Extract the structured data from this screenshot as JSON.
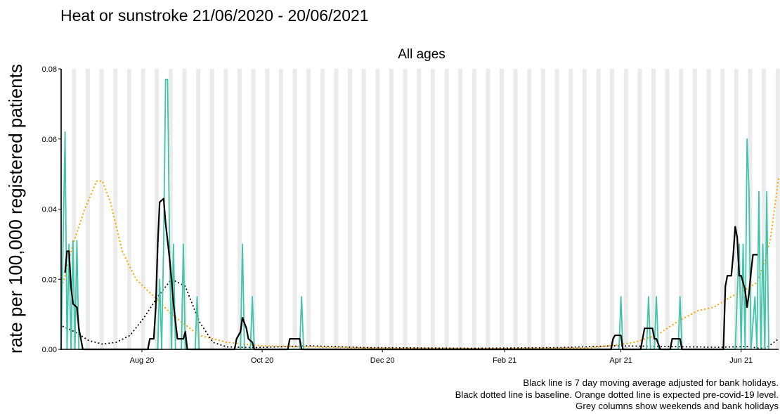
{
  "chart_data": {
    "type": "line",
    "title": "Heat or sunstroke 21/06/2020 - 20/06/2021",
    "panel_title": "All ages",
    "ylabel": "rate per 100,000 registered patients",
    "xlabel": "",
    "ylim": [
      0,
      0.08
    ],
    "xlim": [
      "2020-06-21",
      "2021-06-20"
    ],
    "yticks": [
      0,
      0.02,
      0.04,
      0.06,
      0.08
    ],
    "ytick_labels": [
      "0.00",
      "0.02",
      "0.04",
      "0.06",
      "0.08"
    ],
    "xticks": [
      {
        "date": "2020-08-01",
        "label": "Aug 20"
      },
      {
        "date": "2020-10-01",
        "label": "Oct 20"
      },
      {
        "date": "2020-12-01",
        "label": "Dec 20"
      },
      {
        "date": "2021-02-01",
        "label": "Feb 21"
      },
      {
        "date": "2021-04-01",
        "label": "Apr 21"
      },
      {
        "date": "2021-06-01",
        "label": "Jun 21"
      }
    ],
    "grey_columns": "weekends and bank holidays",
    "series": [
      {
        "kind": "daily",
        "color": "#40c4aa",
        "points": [
          [
            "2020-06-21",
            0
          ],
          [
            "2020-06-23",
            0.062
          ],
          [
            "2020-06-24",
            0
          ],
          [
            "2020-06-25",
            0.03
          ],
          [
            "2020-06-26",
            0
          ],
          [
            "2020-06-27",
            0.031
          ],
          [
            "2020-06-28",
            0
          ],
          [
            "2020-06-29",
            0.031
          ],
          [
            "2020-06-30",
            0
          ],
          [
            "2020-08-09",
            0
          ],
          [
            "2020-08-10",
            0.02
          ],
          [
            "2020-08-11",
            0
          ],
          [
            "2020-08-12",
            0.03
          ],
          [
            "2020-08-13",
            0.077
          ],
          [
            "2020-08-14",
            0.077
          ],
          [
            "2020-08-15",
            0.03
          ],
          [
            "2020-08-16",
            0
          ],
          [
            "2020-08-17",
            0.03
          ],
          [
            "2020-08-18",
            0
          ],
          [
            "2020-08-21",
            0
          ],
          [
            "2020-08-22",
            0.03
          ],
          [
            "2020-08-23",
            0
          ],
          [
            "2020-08-28",
            0
          ],
          [
            "2020-08-29",
            0.015
          ],
          [
            "2020-08-30",
            0
          ],
          [
            "2020-09-20",
            0
          ],
          [
            "2020-09-21",
            0.03
          ],
          [
            "2020-09-22",
            0
          ],
          [
            "2020-09-25",
            0
          ],
          [
            "2020-09-26",
            0.015
          ],
          [
            "2020-09-27",
            0
          ],
          [
            "2020-10-20",
            0
          ],
          [
            "2020-10-21",
            0.015
          ],
          [
            "2020-10-22",
            0
          ],
          [
            "2021-03-31",
            0
          ],
          [
            "2021-04-01",
            0.015
          ],
          [
            "2021-04-02",
            0
          ],
          [
            "2021-04-14",
            0
          ],
          [
            "2021-04-15",
            0.015
          ],
          [
            "2021-04-16",
            0
          ],
          [
            "2021-04-18",
            0
          ],
          [
            "2021-04-19",
            0.015
          ],
          [
            "2021-04-20",
            0
          ],
          [
            "2021-04-30",
            0
          ],
          [
            "2021-05-01",
            0.015
          ],
          [
            "2021-05-02",
            0
          ],
          [
            "2021-05-29",
            0
          ],
          [
            "2021-05-31",
            0.03
          ],
          [
            "2021-06-01",
            0
          ],
          [
            "2021-06-02",
            0.03
          ],
          [
            "2021-06-03",
            0
          ],
          [
            "2021-06-04",
            0.06
          ],
          [
            "2021-06-05",
            0.045
          ],
          [
            "2021-06-06",
            0
          ],
          [
            "2021-06-08",
            0.015
          ],
          [
            "2021-06-09",
            0
          ],
          [
            "2021-06-10",
            0.045
          ],
          [
            "2021-06-11",
            0
          ],
          [
            "2021-06-12",
            0.03
          ],
          [
            "2021-06-13",
            0
          ],
          [
            "2021-06-14",
            0.045
          ],
          [
            "2021-06-15",
            0
          ]
        ]
      },
      {
        "kind": "7 day moving average",
        "color": "#000000",
        "points": [
          [
            "2020-06-23",
            0.022
          ],
          [
            "2020-06-24",
            0.028
          ],
          [
            "2020-06-25",
            0.028
          ],
          [
            "2020-06-26",
            0.018
          ],
          [
            "2020-06-27",
            0.013
          ],
          [
            "2020-06-29",
            0.012
          ],
          [
            "2020-06-30",
            0.006
          ],
          [
            "2020-07-01",
            0.003
          ],
          [
            "2020-07-02",
            0
          ],
          [
            "2020-08-04",
            0
          ],
          [
            "2020-08-05",
            0.003
          ],
          [
            "2020-08-07",
            0.003
          ],
          [
            "2020-08-08",
            0.012
          ],
          [
            "2020-08-09",
            0.03
          ],
          [
            "2020-08-10",
            0.042
          ],
          [
            "2020-08-12",
            0.043
          ],
          [
            "2020-08-13",
            0.036
          ],
          [
            "2020-08-15",
            0.026
          ],
          [
            "2020-08-16",
            0.02
          ],
          [
            "2020-08-17",
            0.013
          ],
          [
            "2020-08-18",
            0.008
          ],
          [
            "2020-08-19",
            0.003
          ],
          [
            "2020-08-22",
            0.003
          ],
          [
            "2020-08-23",
            0.005
          ],
          [
            "2020-08-24",
            0
          ],
          [
            "2020-09-17",
            0
          ],
          [
            "2020-09-18",
            0.003
          ],
          [
            "2020-09-20",
            0.005
          ],
          [
            "2020-09-21",
            0.009
          ],
          [
            "2020-09-23",
            0.006
          ],
          [
            "2020-09-24",
            0.003
          ],
          [
            "2020-09-26",
            0.002
          ],
          [
            "2020-09-27",
            0
          ],
          [
            "2020-10-14",
            0
          ],
          [
            "2020-10-15",
            0.003
          ],
          [
            "2020-10-20",
            0.003
          ],
          [
            "2020-10-21",
            0
          ],
          [
            "2021-03-27",
            0
          ],
          [
            "2021-03-28",
            0.003
          ],
          [
            "2021-03-29",
            0.004
          ],
          [
            "2021-04-01",
            0.004
          ],
          [
            "2021-04-02",
            0
          ],
          [
            "2021-04-11",
            0
          ],
          [
            "2021-04-12",
            0.003
          ],
          [
            "2021-04-13",
            0.006
          ],
          [
            "2021-04-17",
            0.006
          ],
          [
            "2021-04-18",
            0.003
          ],
          [
            "2021-04-19",
            0.003
          ],
          [
            "2021-04-21",
            0
          ],
          [
            "2021-04-26",
            0
          ],
          [
            "2021-04-27",
            0.003
          ],
          [
            "2021-05-01",
            0.003
          ],
          [
            "2021-05-02",
            0
          ],
          [
            "2021-05-23",
            0
          ],
          [
            "2021-05-24",
            0.018
          ],
          [
            "2021-05-25",
            0.021
          ],
          [
            "2021-05-27",
            0.021
          ],
          [
            "2021-05-28",
            0.027
          ],
          [
            "2021-05-29",
            0.035
          ],
          [
            "2021-05-30",
            0.032
          ],
          [
            "2021-05-31",
            0.021
          ],
          [
            "2021-06-01",
            0.021
          ],
          [
            "2021-06-03",
            0.017
          ],
          [
            "2021-06-04",
            0.012
          ],
          [
            "2021-06-05",
            0.016
          ],
          [
            "2021-06-06",
            0.022
          ],
          [
            "2021-06-07",
            0.027
          ],
          [
            "2021-06-09",
            0.027
          ]
        ]
      },
      {
        "kind": "baseline",
        "color": "#000000",
        "style": "dotted",
        "points": [
          [
            "2020-06-22",
            0.0065
          ],
          [
            "2020-06-28",
            0.005
          ],
          [
            "2020-07-05",
            0.0025
          ],
          [
            "2020-07-12",
            0.0015
          ],
          [
            "2020-07-19",
            0.002
          ],
          [
            "2020-07-26",
            0.004
          ],
          [
            "2020-08-02",
            0.009
          ],
          [
            "2020-08-09",
            0.015
          ],
          [
            "2020-08-16",
            0.02
          ],
          [
            "2020-08-23",
            0.018
          ],
          [
            "2020-08-30",
            0.008
          ],
          [
            "2020-09-06",
            0.002
          ],
          [
            "2020-09-13",
            0.0007
          ],
          [
            "2020-09-27",
            0.0005
          ],
          [
            "2020-10-25",
            0.001
          ],
          [
            "2020-11-22",
            0.0005
          ],
          [
            "2021-01-15",
            0.0003
          ],
          [
            "2021-03-01",
            0.0005
          ],
          [
            "2021-03-29",
            0.001
          ],
          [
            "2021-04-25",
            0.0008
          ],
          [
            "2021-05-20",
            0.0006
          ],
          [
            "2021-06-05",
            0.0008
          ],
          [
            "2021-06-10",
            0.0003
          ],
          [
            "2021-06-14",
            0.0005
          ],
          [
            "2021-06-20",
            0.003
          ]
        ]
      },
      {
        "kind": "expected pre-covid-19 level",
        "color": "#ffa500",
        "style": "dotted",
        "points": [
          [
            "2020-06-22",
            0.019
          ],
          [
            "2020-06-27",
            0.03
          ],
          [
            "2020-07-03",
            0.04
          ],
          [
            "2020-07-09",
            0.048
          ],
          [
            "2020-07-12",
            0.048
          ],
          [
            "2020-07-16",
            0.042
          ],
          [
            "2020-07-22",
            0.028
          ],
          [
            "2020-07-29",
            0.02
          ],
          [
            "2020-08-09",
            0.014
          ],
          [
            "2020-08-16",
            0.01
          ],
          [
            "2020-08-23",
            0.007
          ],
          [
            "2020-08-30",
            0.004
          ],
          [
            "2020-09-13",
            0.002
          ],
          [
            "2020-10-01",
            0.001
          ],
          [
            "2020-12-01",
            0.0003
          ],
          [
            "2021-02-01",
            0.0002
          ],
          [
            "2021-03-15",
            0.0004
          ],
          [
            "2021-03-29",
            0.0012
          ],
          [
            "2021-04-08",
            0.002
          ],
          [
            "2021-04-19",
            0.004
          ],
          [
            "2021-04-30",
            0.008
          ],
          [
            "2021-05-10",
            0.011
          ],
          [
            "2021-05-18",
            0.012
          ],
          [
            "2021-05-27",
            0.015
          ],
          [
            "2021-06-03",
            0.017
          ],
          [
            "2021-06-09",
            0.019
          ],
          [
            "2021-06-13",
            0.025
          ],
          [
            "2021-06-16",
            0.032
          ],
          [
            "2021-06-20",
            0.049
          ]
        ]
      }
    ]
  },
  "notes": [
    "Black line is 7 day moving average adjusted for bank holidays.",
    "Black dotted line is baseline. Orange dotted line is expected pre-covid-19 level.",
    "Grey columns show weekends and bank holidays"
  ]
}
